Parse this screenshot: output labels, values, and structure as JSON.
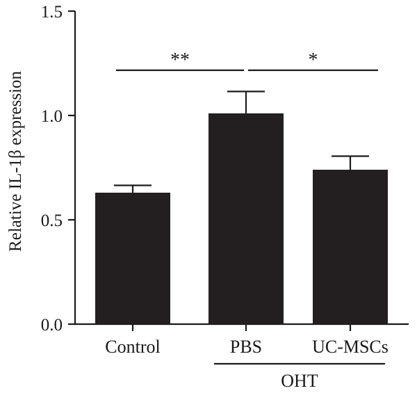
{
  "chart_data": {
    "type": "bar",
    "categories": [
      "Control",
      "PBS",
      "UC-MSCs"
    ],
    "values": [
      0.63,
      1.01,
      0.74
    ],
    "errors": [
      0.035,
      0.105,
      0.065
    ],
    "bar_color": "#231f20",
    "ylabel": "Relative IL-1β expression",
    "xlabel": "",
    "ylim": [
      0,
      1.5
    ],
    "yticks": [
      0.0,
      0.5,
      1.0,
      1.5
    ],
    "ytick_labels": [
      "0.0",
      "0.5",
      "1.0",
      "1.5"
    ],
    "group_label": {
      "text": "OHT",
      "spans": [
        "PBS",
        "UC-MSCs"
      ]
    },
    "significance": [
      {
        "from": "Control",
        "to": "PBS",
        "label": "**"
      },
      {
        "from": "PBS",
        "to": "UC-MSCs",
        "label": "*"
      }
    ],
    "grid": false,
    "legend": "none"
  }
}
